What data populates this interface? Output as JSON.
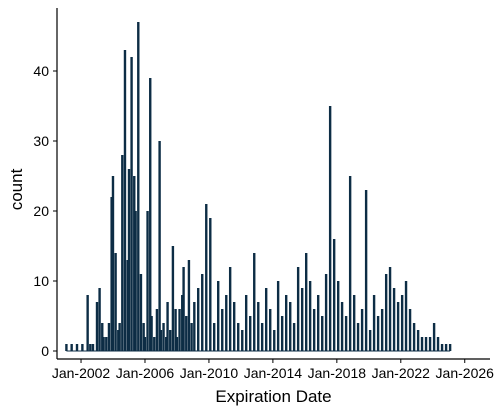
{
  "chart_data": {
    "type": "bar",
    "title": "",
    "xlabel": "Expiration Date",
    "ylabel": "count",
    "x_type": "date",
    "xlim": [
      "2000-07-01",
      "2027-08-01"
    ],
    "ylim": [
      0,
      49
    ],
    "y_ticks": [
      0,
      10,
      20,
      30,
      40
    ],
    "x_ticks": [
      {
        "date": "2002-01-01",
        "label": "Jan-2002"
      },
      {
        "date": "2006-01-01",
        "label": "Jan-2006"
      },
      {
        "date": "2010-01-01",
        "label": "Jan-2010"
      },
      {
        "date": "2014-01-01",
        "label": "Jan-2014"
      },
      {
        "date": "2018-01-01",
        "label": "Jan-2018"
      },
      {
        "date": "2022-01-01",
        "label": "Jan-2022"
      },
      {
        "date": "2026-01-01",
        "label": "Jan-2026"
      }
    ],
    "grid": false,
    "legend": "none",
    "bar_color": "#0d2d45",
    "series": [
      {
        "x": [
          "2001-02",
          "2001-06",
          "2001-10",
          "2002-02",
          "2002-06",
          "2002-08",
          "2002-10",
          "2003-01",
          "2003-03",
          "2003-05",
          "2003-06",
          "2003-08",
          "2003-10",
          "2003-12",
          "2004-01",
          "2004-03",
          "2004-05",
          "2004-06",
          "2004-08",
          "2004-10",
          "2004-12",
          "2005-01",
          "2005-03",
          "2005-05",
          "2005-06",
          "2005-08",
          "2005-10",
          "2005-12",
          "2006-01",
          "2006-03",
          "2006-05",
          "2006-06",
          "2006-08",
          "2006-10",
          "2006-12",
          "2007-01",
          "2007-03",
          "2007-05",
          "2007-06",
          "2007-08",
          "2007-10",
          "2007-12",
          "2008-01",
          "2008-03",
          "2008-05",
          "2008-06",
          "2008-08",
          "2008-10",
          "2008-12",
          "2009-02",
          "2009-05",
          "2009-08",
          "2009-11",
          "2010-02",
          "2010-05",
          "2010-08",
          "2010-11",
          "2011-02",
          "2011-05",
          "2011-08",
          "2011-11",
          "2012-02",
          "2012-05",
          "2012-08",
          "2012-11",
          "2013-02",
          "2013-05",
          "2013-08",
          "2013-11",
          "2014-02",
          "2014-05",
          "2014-08",
          "2014-11",
          "2015-02",
          "2015-05",
          "2015-08",
          "2015-11",
          "2016-02",
          "2016-05",
          "2016-08",
          "2016-11",
          "2017-02",
          "2017-05",
          "2017-08",
          "2017-11",
          "2018-02",
          "2018-05",
          "2018-08",
          "2018-11",
          "2019-02",
          "2019-05",
          "2019-08",
          "2019-11",
          "2020-02",
          "2020-05",
          "2020-08",
          "2020-11",
          "2021-02",
          "2021-05",
          "2021-08",
          "2021-11",
          "2022-02",
          "2022-05",
          "2022-08",
          "2022-11",
          "2023-02",
          "2023-05",
          "2023-08",
          "2023-11",
          "2024-02",
          "2024-05",
          "2024-08",
          "2024-11",
          "2025-02"
        ],
        "values": [
          1,
          1,
          1,
          1,
          8,
          1,
          1,
          7,
          9,
          4,
          2,
          2,
          4,
          22,
          25,
          14,
          3,
          4,
          28,
          43,
          13,
          26,
          42,
          25,
          20,
          47,
          11,
          4,
          2,
          20,
          39,
          5,
          2,
          6,
          30,
          3,
          4,
          2,
          7,
          3,
          15,
          6,
          2,
          6,
          8,
          12,
          5,
          13,
          4,
          7,
          9,
          11,
          21,
          19,
          4,
          10,
          6,
          8,
          12,
          7,
          4,
          3,
          8,
          5,
          14,
          7,
          4,
          9,
          6,
          3,
          10,
          5,
          8,
          7,
          4,
          12,
          9,
          14,
          10,
          6,
          8,
          5,
          11,
          35,
          16,
          10,
          7,
          5,
          25,
          8,
          4,
          6,
          23,
          3,
          8,
          5,
          6,
          11,
          12,
          9,
          7,
          8,
          10,
          6,
          4,
          3,
          2,
          2,
          2,
          4,
          2,
          1,
          1,
          1
        ]
      }
    ]
  }
}
